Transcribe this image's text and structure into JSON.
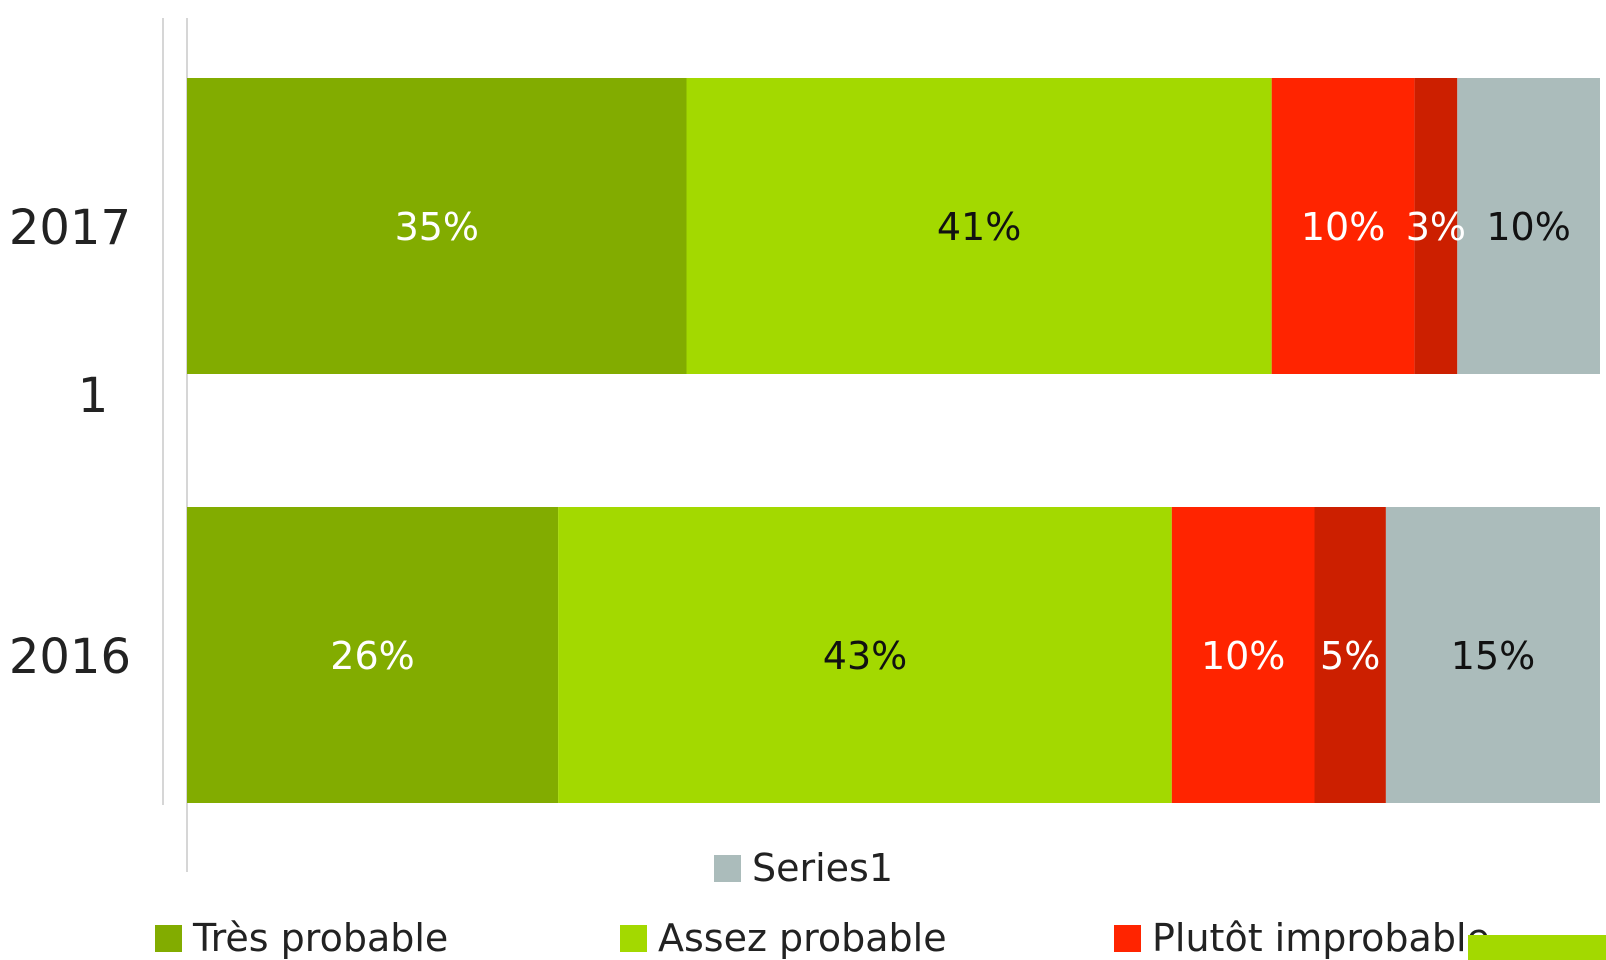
{
  "chart_data": {
    "type": "bar",
    "orientation": "horizontal",
    "stacked": true,
    "percent_scale": true,
    "categories": [
      "2017",
      "2016"
    ],
    "extra_axis_label": "1",
    "series": [
      {
        "name": "Très probable",
        "values": [
          35,
          26
        ],
        "color": "#82ac00",
        "label_color": "#ffffff"
      },
      {
        "name": "Assez probable",
        "values": [
          41,
          43
        ],
        "color": "#a3d900",
        "label_color": "#111111"
      },
      {
        "name": "Plutôt improbable",
        "values": [
          10,
          10
        ],
        "color": "#ff2400",
        "label_color": "#ffffff"
      },
      {
        "name": "",
        "values": [
          3,
          5
        ],
        "color": "#cc1f00",
        "label_color": "#ffffff"
      },
      {
        "name": "",
        "values": [
          10,
          15
        ],
        "color": "#abbcbb",
        "label_color": "#111111"
      }
    ],
    "data_labels": [
      [
        "35%",
        "41%",
        "10%",
        "3%",
        "10%"
      ],
      [
        "26%",
        "43%",
        "10%",
        "5%",
        "15%"
      ]
    ],
    "legend": {
      "position": "bottom",
      "entries": [
        {
          "label": "Series1",
          "color": "#abbcbb"
        },
        {
          "label": "Très probable",
          "color": "#82ac00"
        },
        {
          "label": "Assez probable",
          "color": "#a3d900"
        },
        {
          "label": "Plutôt improbable",
          "color": "#ff2400"
        }
      ]
    },
    "grid": false
  }
}
